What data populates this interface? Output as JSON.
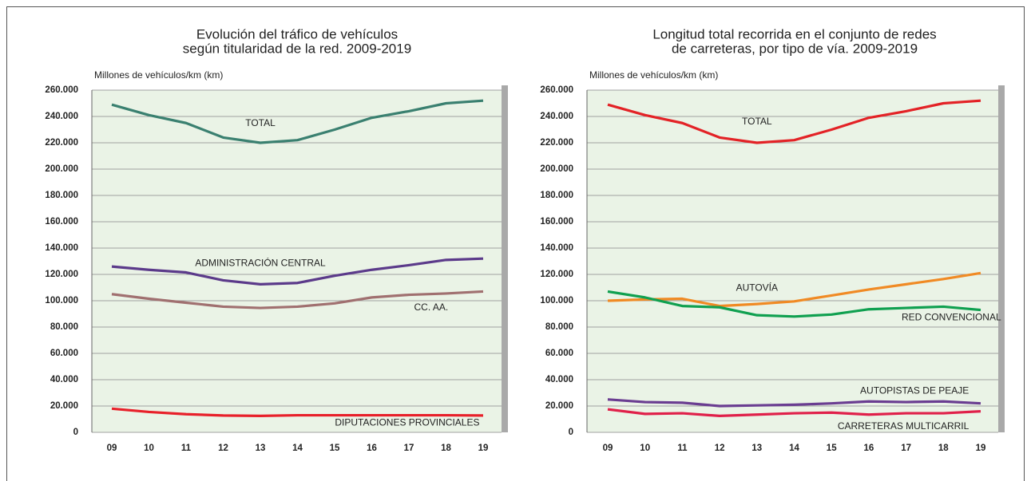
{
  "chart_data": [
    {
      "type": "line",
      "title": [
        "Evolución del tráfico de vehículos",
        "según titularidad de la red. 2009-2019"
      ],
      "ylabel": "Millones de vehículos/km (km)",
      "categories": [
        "09",
        "10",
        "11",
        "12",
        "13",
        "14",
        "15",
        "16",
        "17",
        "18",
        "19"
      ],
      "ylim": [
        0,
        260000
      ],
      "yticks": [
        0,
        {
          "value": 20000,
          "label": "20.000"
        },
        {
          "value": 40000,
          "label": "40.000"
        },
        {
          "value": 60000,
          "label": "60.000"
        },
        {
          "value": 80000,
          "label": "80.000"
        },
        {
          "value": 100000,
          "label": "100.000"
        },
        {
          "value": 120000,
          "label": "120.000"
        },
        {
          "value": 140000,
          "label": "140.000"
        },
        {
          "value": 160000,
          "label": "160.000"
        },
        {
          "value": 180000,
          "label": "180.000"
        },
        {
          "value": 200000,
          "label": "200.000"
        },
        {
          "value": 220000,
          "label": "220.000"
        },
        {
          "value": 240000,
          "label": "240.000"
        },
        {
          "value": 260000,
          "label": "260.000"
        }
      ],
      "grid": true,
      "series": [
        {
          "name": "TOTAL",
          "color": "#3a8070",
          "values": [
            249000,
            241000,
            235000,
            224000,
            220000,
            222000,
            230000,
            239000,
            244000,
            250000,
            252000
          ]
        },
        {
          "name": "ADMINISTRACIÓN CENTRAL",
          "color": "#5b3a8a",
          "values": [
            126000,
            123500,
            121500,
            115500,
            112500,
            113500,
            119000,
            123500,
            127000,
            131000,
            132000
          ]
        },
        {
          "name": "CC. AA.",
          "color": "#a07070",
          "values": [
            105000,
            101500,
            98500,
            95500,
            94500,
            95500,
            98000,
            102500,
            104500,
            105500,
            107000
          ]
        },
        {
          "name": "DIPUTACIONES PROVINCIALES",
          "color": "#e8202a",
          "values": [
            18000,
            15500,
            13800,
            12800,
            12500,
            13000,
            13000,
            13000,
            13000,
            13000,
            12800
          ]
        }
      ]
    },
    {
      "type": "line",
      "title": [
        "Longitud  total recorrida en el conjunto de redes",
        "de carreteras, por tipo de vía. 2009-2019"
      ],
      "ylabel": "Millones de vehículos/km (km)",
      "categories": [
        "09",
        "10",
        "11",
        "12",
        "13",
        "14",
        "15",
        "16",
        "17",
        "18",
        "19"
      ],
      "ylim": [
        0,
        260000
      ],
      "yticks": [
        0,
        {
          "value": 20000,
          "label": "20.000"
        },
        {
          "value": 40000,
          "label": "40.000"
        },
        {
          "value": 60000,
          "label": "60.000"
        },
        {
          "value": 80000,
          "label": "80.000"
        },
        {
          "value": 100000,
          "label": "100.000"
        },
        {
          "value": 120000,
          "label": "120.000"
        },
        {
          "value": 140000,
          "label": "140.000"
        },
        {
          "value": 160000,
          "label": "160.000"
        },
        {
          "value": 180000,
          "label": "180.000"
        },
        {
          "value": 200000,
          "label": "200.000"
        },
        {
          "value": 220000,
          "label": "220.000"
        },
        {
          "value": 240000,
          "label": "240.000"
        },
        {
          "value": 260000,
          "label": "260.000"
        }
      ],
      "grid": true,
      "series": [
        {
          "name": "TOTAL",
          "color": "#e32226",
          "values": [
            249000,
            241000,
            235000,
            224000,
            220000,
            222000,
            230000,
            239000,
            244000,
            250000,
            252000
          ]
        },
        {
          "name": "AUTOVÍA",
          "color": "#f08a24",
          "values": [
            100000,
            101000,
            101500,
            96000,
            97500,
            99500,
            104000,
            108500,
            112500,
            116500,
            121000
          ]
        },
        {
          "name": "RED CONVENCIONAL",
          "color": "#10a050",
          "values": [
            107000,
            102500,
            96000,
            95000,
            89000,
            88000,
            89500,
            93500,
            94500,
            95500,
            93000
          ]
        },
        {
          "name": "AUTOPISTAS DE PEAJE",
          "color": "#6a3d91",
          "values": [
            25000,
            23000,
            22500,
            20000,
            20500,
            21000,
            22000,
            23500,
            23000,
            23500,
            22000
          ]
        },
        {
          "name": "CARRETERAS MULTICARRIL",
          "color": "#e0204a",
          "values": [
            17500,
            14000,
            14500,
            12500,
            13500,
            14500,
            15000,
            13500,
            14500,
            14500,
            16000
          ]
        }
      ]
    }
  ]
}
